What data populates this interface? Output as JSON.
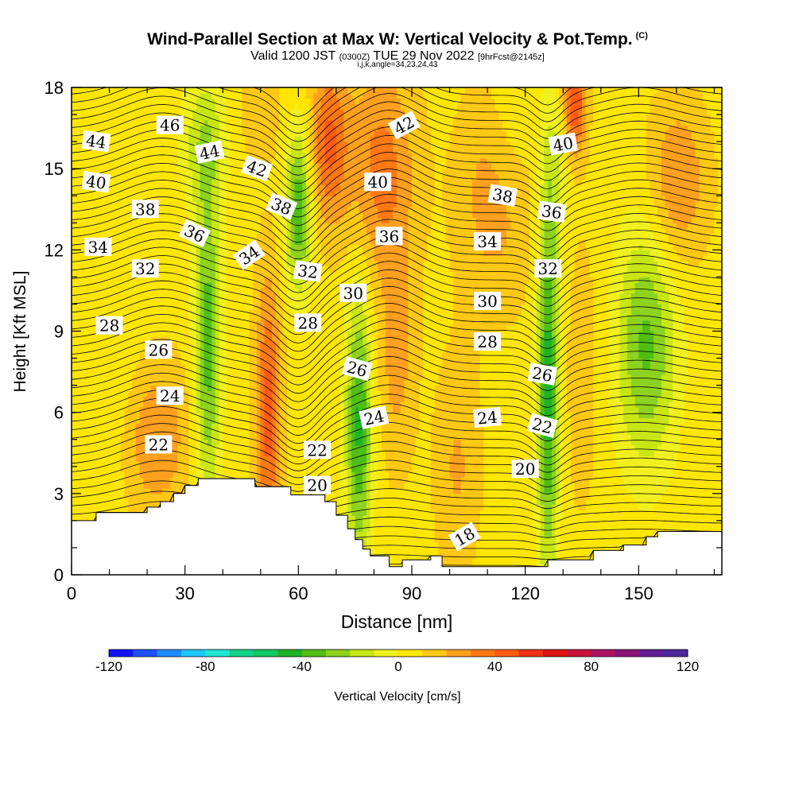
{
  "title": {
    "main": "Wind-Parallel Section at Max W: Vertical Velocity & Pot.Temp.",
    "copyright": "(C)",
    "valid_prefix": "Valid 1200 JST",
    "valid_z": "(0300Z)",
    "valid_date": "TUE 29 Nov 2022",
    "forecast": "[9hrFcst@2145z]",
    "indices": "i,j,k,angle=34,23,24,43"
  },
  "chart_data": {
    "type": "heatmap",
    "xlabel": "Distance [nm]",
    "ylabel": "Height [Kft MSL]",
    "xlim": [
      0,
      172
    ],
    "ylim": [
      0,
      18
    ],
    "x_ticks": [
      0,
      30,
      60,
      90,
      120,
      150
    ],
    "y_ticks": [
      0,
      3,
      6,
      9,
      12,
      15,
      18
    ],
    "colorbar": {
      "label": "Vertical Velocity [cm/s]",
      "min": -120,
      "max": 120,
      "step": 10,
      "tick_labels": [
        "-120",
        "-80",
        "-40",
        "0",
        "40",
        "80",
        "120"
      ],
      "colors": [
        "#1414ff",
        "#1e50ff",
        "#1e8cff",
        "#1ec8ff",
        "#1ee6d2",
        "#14d28c",
        "#14c864",
        "#1eb428",
        "#50be14",
        "#8cd21e",
        "#c8e614",
        "#f0f01e",
        "#ffe600",
        "#ffc814",
        "#ffa01e",
        "#ff7814",
        "#ff5a14",
        "#f03214",
        "#dc1414",
        "#c8143c",
        "#aa1464",
        "#8c1478",
        "#641e96",
        "#50289c"
      ]
    },
    "theta_contour_labels": [
      {
        "value": 46,
        "x": 26,
        "y": 16.6,
        "angle": 0
      },
      {
        "value": 44,
        "x": 6.5,
        "y": 16.0,
        "angle": 8
      },
      {
        "value": 44,
        "x": 36.5,
        "y": 15.6,
        "angle": -12
      },
      {
        "value": 42,
        "x": 49,
        "y": 15.0,
        "angle": 20
      },
      {
        "value": 42,
        "x": 88,
        "y": 16.6,
        "angle": -28
      },
      {
        "value": 40,
        "x": 6.5,
        "y": 14.5,
        "angle": 8
      },
      {
        "value": 40,
        "x": 81,
        "y": 14.5,
        "angle": 0
      },
      {
        "value": 40,
        "x": 130,
        "y": 15.9,
        "angle": -10
      },
      {
        "value": 38,
        "x": 19.5,
        "y": 13.5,
        "angle": 0
      },
      {
        "value": 38,
        "x": 55.5,
        "y": 13.6,
        "angle": 22
      },
      {
        "value": 38,
        "x": 114,
        "y": 14.0,
        "angle": 10
      },
      {
        "value": 36,
        "x": 32.5,
        "y": 12.6,
        "angle": 25
      },
      {
        "value": 36,
        "x": 84,
        "y": 12.5,
        "angle": 0
      },
      {
        "value": 36,
        "x": 127,
        "y": 13.4,
        "angle": 8
      },
      {
        "value": 34,
        "x": 7,
        "y": 12.1,
        "angle": 0
      },
      {
        "value": 34,
        "x": 47,
        "y": 11.8,
        "angle": -35
      },
      {
        "value": 34,
        "x": 110,
        "y": 12.3,
        "angle": 0
      },
      {
        "value": 32,
        "x": 19.5,
        "y": 11.3,
        "angle": 0
      },
      {
        "value": 32,
        "x": 62.5,
        "y": 11.2,
        "angle": 8
      },
      {
        "value": 32,
        "x": 126,
        "y": 11.3,
        "angle": 0
      },
      {
        "value": 30,
        "x": 74.5,
        "y": 10.4,
        "angle": 0
      },
      {
        "value": 30,
        "x": 110,
        "y": 10.1,
        "angle": 0
      },
      {
        "value": 28,
        "x": 10,
        "y": 9.2,
        "angle": 0
      },
      {
        "value": 28,
        "x": 62.5,
        "y": 9.3,
        "angle": 0
      },
      {
        "value": 28,
        "x": 110,
        "y": 8.6,
        "angle": 0
      },
      {
        "value": 26,
        "x": 23,
        "y": 8.3,
        "angle": 0
      },
      {
        "value": 26,
        "x": 75.5,
        "y": 7.6,
        "angle": 15
      },
      {
        "value": 26,
        "x": 124.5,
        "y": 7.4,
        "angle": 10
      },
      {
        "value": 24,
        "x": 26,
        "y": 6.6,
        "angle": 0
      },
      {
        "value": 24,
        "x": 80,
        "y": 5.8,
        "angle": -12
      },
      {
        "value": 24,
        "x": 110,
        "y": 5.8,
        "angle": -5
      },
      {
        "value": 22,
        "x": 23,
        "y": 4.8,
        "angle": 0
      },
      {
        "value": 22,
        "x": 65,
        "y": 4.6,
        "angle": 0
      },
      {
        "value": 22,
        "x": 124.5,
        "y": 5.5,
        "angle": 15
      },
      {
        "value": 20,
        "x": 65,
        "y": 3.3,
        "angle": 0
      },
      {
        "value": 20,
        "x": 120,
        "y": 3.9,
        "angle": 0
      },
      {
        "value": 18,
        "x": 104,
        "y": 1.4,
        "angle": -30
      }
    ],
    "terrain_top": [
      [
        0,
        2.0
      ],
      [
        6.5,
        2.0
      ],
      [
        6.5,
        2.3
      ],
      [
        20,
        2.3
      ],
      [
        20,
        2.5
      ],
      [
        23.5,
        2.5
      ],
      [
        23.5,
        2.7
      ],
      [
        27,
        2.7
      ],
      [
        27,
        3.0
      ],
      [
        30,
        3.0
      ],
      [
        30,
        3.3
      ],
      [
        33.5,
        3.3
      ],
      [
        33.5,
        3.55
      ],
      [
        48.5,
        3.55
      ],
      [
        48.5,
        3.25
      ],
      [
        58,
        3.25
      ],
      [
        58,
        2.95
      ],
      [
        67,
        2.95
      ],
      [
        67,
        2.7
      ],
      [
        70,
        2.7
      ],
      [
        70,
        2.2
      ],
      [
        73,
        2.2
      ],
      [
        73,
        1.7
      ],
      [
        75,
        1.7
      ],
      [
        75,
        1.3
      ],
      [
        77,
        1.3
      ],
      [
        77,
        0.95
      ],
      [
        79,
        0.95
      ],
      [
        79,
        0.7
      ],
      [
        84,
        0.7
      ],
      [
        84,
        0.3
      ],
      [
        87.5,
        0.3
      ],
      [
        87.5,
        0.55
      ],
      [
        95,
        0.55
      ],
      [
        95,
        0.7
      ],
      [
        98,
        0.7
      ],
      [
        98,
        0.3
      ],
      [
        126,
        0.3
      ],
      [
        126,
        0.55
      ],
      [
        138,
        0.55
      ],
      [
        138,
        0.9
      ],
      [
        146,
        0.9
      ],
      [
        146,
        1.1
      ],
      [
        152,
        1.1
      ],
      [
        152,
        1.4
      ],
      [
        155,
        1.4
      ],
      [
        155,
        1.6
      ],
      [
        172,
        1.6
      ]
    ],
    "w_field_features": [
      {
        "x": 12,
        "z": 7,
        "w": -8,
        "sx": 6,
        "sz": 5
      },
      {
        "x": 22,
        "z": 5,
        "w": 22,
        "sx": 10,
        "sz": 3
      },
      {
        "x": 36,
        "z": 8.5,
        "w": -42,
        "sx": 3.5,
        "sz": 6
      },
      {
        "x": 35,
        "z": 16,
        "w": -22,
        "sx": 6,
        "sz": 2.5
      },
      {
        "x": 52,
        "z": 6,
        "w": 38,
        "sx": 3.5,
        "sz": 5
      },
      {
        "x": 50,
        "z": 17,
        "w": 10,
        "sx": 6,
        "sz": 2
      },
      {
        "x": 60,
        "z": 13.5,
        "w": -45,
        "sx": 3.5,
        "sz": 3
      },
      {
        "x": 68,
        "z": 16,
        "w": 35,
        "sx": 5,
        "sz": 3
      },
      {
        "x": 76,
        "z": 5.5,
        "w": -48,
        "sx": 3.5,
        "sz": 5
      },
      {
        "x": 82,
        "z": 15,
        "w": 28,
        "sx": 9,
        "sz": 4
      },
      {
        "x": 86,
        "z": 8,
        "w": 18,
        "sx": 5,
        "sz": 4
      },
      {
        "x": 102,
        "z": 4,
        "w": 15,
        "sx": 6,
        "sz": 4
      },
      {
        "x": 112,
        "z": 14,
        "w": 20,
        "sx": 10,
        "sz": 4
      },
      {
        "x": 116,
        "z": 16.5,
        "w": -10,
        "sx": 6,
        "sz": 3
      },
      {
        "x": 126,
        "z": 7,
        "w": -52,
        "sx": 2.8,
        "sz": 7
      },
      {
        "x": 128,
        "z": 15,
        "w": -15,
        "sx": 4,
        "sz": 3
      },
      {
        "x": 133,
        "z": 17.5,
        "w": 45,
        "sx": 3,
        "sz": 2
      },
      {
        "x": 135,
        "z": 7.5,
        "w": 12,
        "sx": 4,
        "sz": 5
      },
      {
        "x": 152,
        "z": 8.5,
        "w": -38,
        "sx": 8,
        "sz": 4.5
      },
      {
        "x": 160,
        "z": 14.5,
        "w": 25,
        "sx": 8,
        "sz": 3
      }
    ]
  }
}
